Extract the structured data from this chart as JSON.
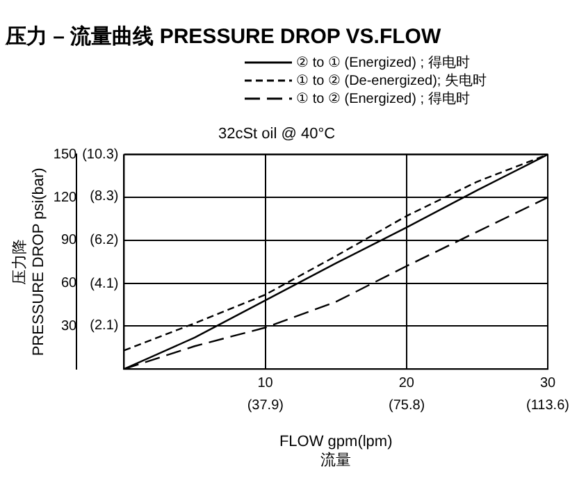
{
  "chart_data": {
    "type": "line",
    "title": "压力 – 流量曲线 PRESSURE DROP VS.FLOW",
    "subtitle": "32cSt oil @ 40°C",
    "xlabel": "FLOW gpm(lpm)\n流量",
    "ylabel": "压力降\nPRESSURE DROP psi(bar)",
    "x": [
      0,
      5,
      10,
      15,
      20,
      25,
      30
    ],
    "series": [
      {
        "name": "② to ① (Energized) ; 得电时",
        "color": "#000000",
        "line_style": "solid",
        "values": [
          0,
          22,
          48,
          74,
          99,
          125,
          150
        ]
      },
      {
        "name": "① to ② (De-energized); 失电时",
        "color": "#000000",
        "line_style": "dashed",
        "values": [
          13,
          32,
          52,
          79,
          107,
          131,
          150
        ]
      },
      {
        "name": "① to ② (Energized) ; 得电时",
        "color": "#000000",
        "line_style": "longdash",
        "values": [
          0,
          16,
          29,
          47,
          72,
          96,
          120
        ]
      }
    ],
    "xlim": [
      0,
      30
    ],
    "xticks": [
      {
        "value": 0,
        "label": null
      },
      10,
      20,
      30
    ],
    "x2lim": [
      0,
      113.6
    ],
    "x2ticks": [
      {
        "value": 37.9,
        "label": "(37.9)"
      },
      {
        "value": 75.8,
        "label": "(75.8)"
      },
      {
        "value": 113.6,
        "label": "(113.6)"
      }
    ],
    "ylim": [
      0,
      150
    ],
    "yticks": [
      {
        "value": 0,
        "label": null
      },
      30,
      60,
      90,
      120,
      150
    ],
    "y2lim": [
      0,
      10.3
    ],
    "y2ticks": [
      {
        "value": 2.1,
        "label": "(2.1)"
      },
      {
        "value": 4.1,
        "label": "(4.1)"
      },
      {
        "value": 6.2,
        "label": "(6.2)"
      },
      {
        "value": 8.3,
        "label": "(8.3)"
      },
      {
        "value": 10.3,
        "label": "(10.3)"
      }
    ],
    "grid": true,
    "legend": "top right",
    "marker": "none"
  }
}
